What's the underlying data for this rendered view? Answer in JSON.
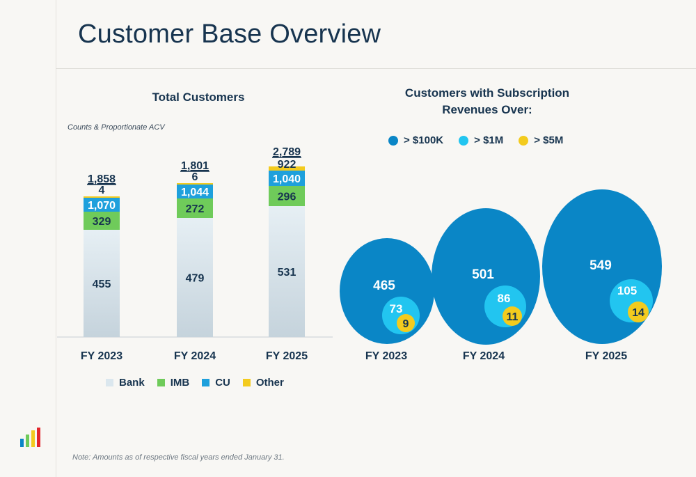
{
  "page": {
    "title": "Customer Base Overview",
    "note": "Note: Amounts as of respective fiscal years ended January 31."
  },
  "colors": {
    "bank": "#dbe7ee",
    "imb": "#6fcb5a",
    "cu": "#1ea0dc",
    "other": "#f3cb1e",
    "bubble_100k": "#0a86c6",
    "bubble_1m": "#22c5f0",
    "bubble_5m": "#f3cb1e",
    "text": "#17344f"
  },
  "chart_data": [
    {
      "type": "bar",
      "stacked": true,
      "title": "Total Customers",
      "subtitle": "Counts & Proportionate ACV",
      "categories": [
        "FY 2023",
        "FY 2024",
        "FY 2025"
      ],
      "series": [
        {
          "name": "Bank",
          "values": [
            455,
            479,
            531
          ]
        },
        {
          "name": "IMB",
          "values": [
            329,
            272,
            296
          ]
        },
        {
          "name": "CU",
          "values": [
            1070,
            1044,
            1040
          ]
        },
        {
          "name": "Other",
          "values": [
            4,
            6,
            922
          ]
        }
      ],
      "value_labels": [
        [
          "455",
          "479",
          "531"
        ],
        [
          "329",
          "272",
          "296"
        ],
        [
          "1,070",
          "1,044",
          "1,040"
        ],
        [
          "4",
          "6",
          "922"
        ]
      ],
      "totals": [
        1858,
        1801,
        2789
      ],
      "total_labels": [
        "1,858",
        "1,801",
        "2,789"
      ],
      "stack_height_index": [
        1,
        1.16,
        1.58,
        1.85,
        1.08,
        1.42,
        1.55,
        1.72,
        1.45,
        2.12,
        2.5,
        2.65,
        2.75
      ],
      "legend": "bottom"
    },
    {
      "type": "bubble",
      "title": "Customers with Subscription Revenues Over:",
      "categories": [
        "FY 2023",
        "FY 2024",
        "FY 2025"
      ],
      "series": [
        {
          "name": "> $100K",
          "values": [
            465,
            501,
            549
          ]
        },
        {
          "name": "> $1M",
          "values": [
            73,
            86,
            105
          ]
        },
        {
          "name": "> $5M",
          "values": [
            9,
            11,
            14
          ]
        }
      ],
      "legend": "top"
    }
  ]
}
